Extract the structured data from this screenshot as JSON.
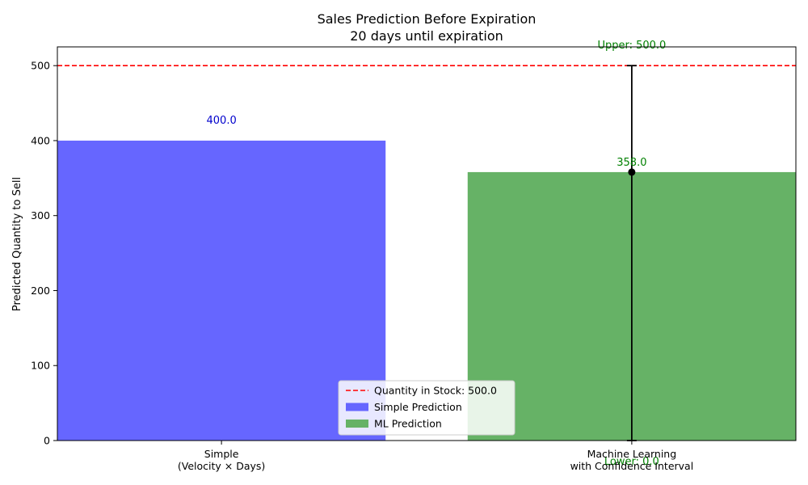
{
  "chart_data": {
    "type": "bar",
    "title_lines": [
      "Sales Prediction Before Expiration",
      "20 days until expiration"
    ],
    "ylabel": "Predicted Quantity to Sell",
    "ylim": [
      0,
      525
    ],
    "yticks": [
      0,
      100,
      200,
      300,
      400,
      500
    ],
    "grid": false,
    "categories": [
      [
        "Simple",
        "(Velocity × Days)"
      ],
      [
        "Machine Learning",
        "with Confidence Interval"
      ]
    ],
    "bars": [
      {
        "series": "Simple Prediction",
        "value": 400,
        "label": "400.0",
        "color": "#6666ff"
      },
      {
        "series": "ML Prediction",
        "value": 358,
        "label": "358.0",
        "color": "#66b266",
        "interval": {
          "lower": 0,
          "upper": 500,
          "lower_label": "Lower: 0.0",
          "upper_label": "Upper: 500.0"
        }
      }
    ],
    "reference_line": {
      "value": 500,
      "label": "Quantity in Stock: 500.0",
      "color": "#ff0000",
      "style": "dashed"
    },
    "label_colors": {
      "simple": "#0000cc",
      "ml": "#008000"
    },
    "legend": {
      "placement": "lower-center",
      "entries": [
        {
          "label": "Quantity in Stock: 500.0",
          "kind": "dashed-line",
          "color": "#ff0000"
        },
        {
          "label": "Simple Prediction",
          "kind": "patch",
          "color": "#6666ff"
        },
        {
          "label": "ML Prediction",
          "kind": "patch",
          "color": "#66b266"
        }
      ]
    }
  }
}
